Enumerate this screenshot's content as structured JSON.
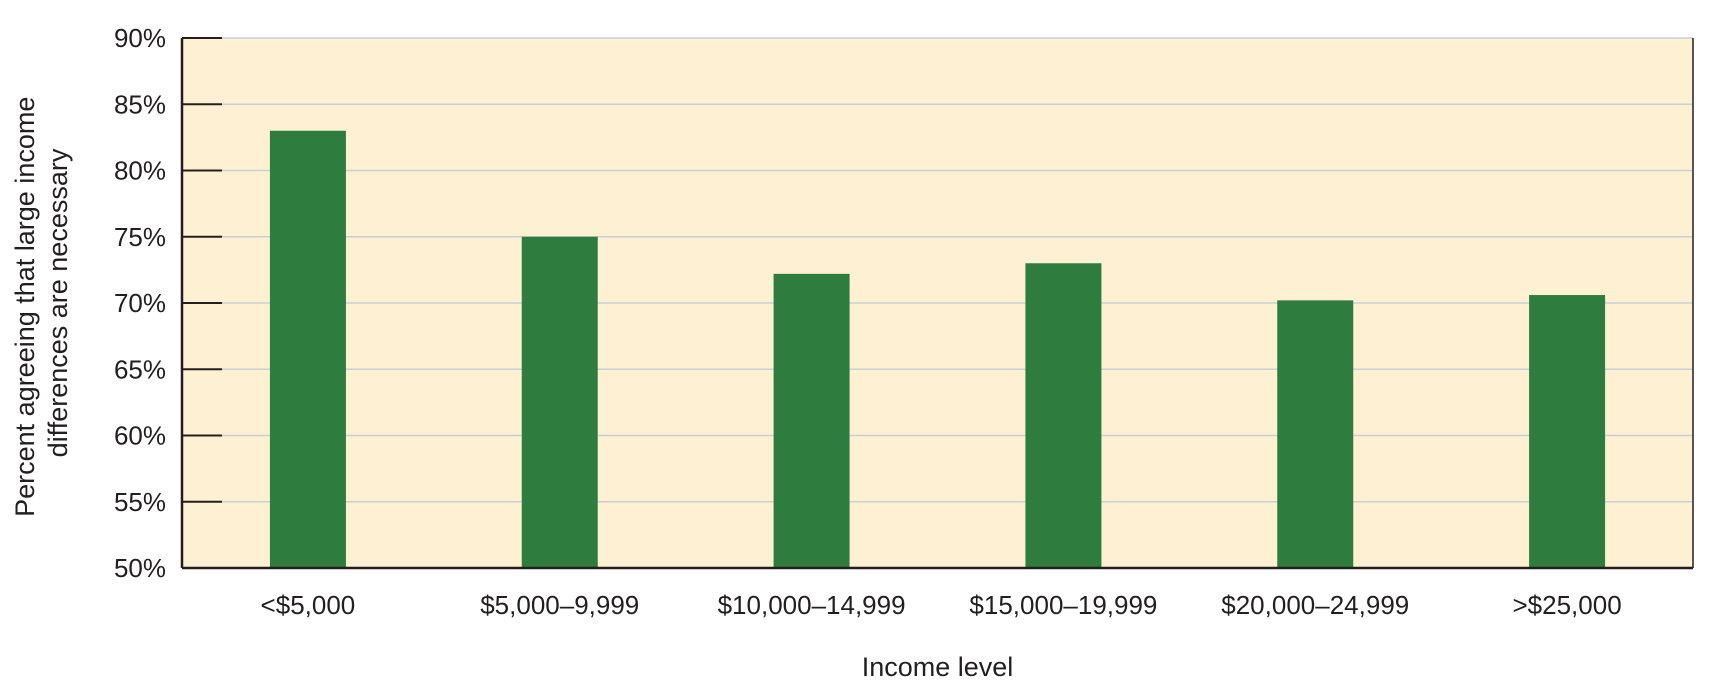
{
  "chart_data": {
    "type": "bar",
    "title": "",
    "xlabel": "Income level",
    "ylabel_lines": [
      "Percent agreeing that large income",
      "differences are necessary"
    ],
    "categories": [
      "<$5,000",
      "$5,000–9,999",
      "$10,000–14,999",
      "$15,000–19,999",
      "$20,000–24,999",
      ">$25,000"
    ],
    "values": [
      83,
      75,
      72.2,
      73,
      70.2,
      70.6
    ],
    "ylim": [
      50,
      90
    ],
    "y_ticks": [
      50,
      55,
      60,
      65,
      70,
      75,
      80,
      85,
      90
    ],
    "y_tick_labels": [
      "50%",
      "55%",
      "60%",
      "65%",
      "70%",
      "75%",
      "80%",
      "85%",
      "90%"
    ],
    "grid": true,
    "legend": "none",
    "colors": {
      "bar": "#2e7d3e",
      "plot_background": "#fdf0d3",
      "gridline": "#c9cfd6",
      "axis": "#231f20"
    }
  }
}
